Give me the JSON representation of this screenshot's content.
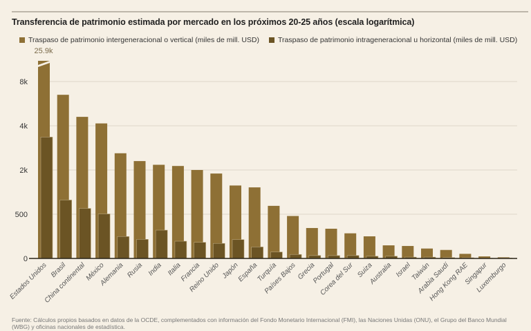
{
  "chart_data": {
    "type": "bar",
    "title": "Transferencia de patrimonio estimada por mercado en los próximos 20-25 años (escala logarítmica)",
    "xlabel": "",
    "ylabel": "",
    "yticks": [
      0,
      500,
      2000,
      4000,
      8000
    ],
    "ytick_labels": [
      "0",
      "500",
      "2k",
      "4k",
      "8k"
    ],
    "grid": true,
    "legend": "top-left",
    "categories": [
      "Estados Unidos",
      "Brasil",
      "China continental",
      "México",
      "Alemania",
      "Rusia",
      "India",
      "Italia",
      "Francia",
      "Reino Unido",
      "Japón",
      "España",
      "Turquía",
      "Países Bajos",
      "Grecia",
      "Portugal",
      "Corea del Sur",
      "Suiza",
      "Australia",
      "Israel",
      "Taiwán",
      "Arabia Saudí",
      "Hong Kong RAE",
      "Singapur",
      "Luxemburgo"
    ],
    "series": [
      {
        "name": "Traspaso de patrimonio intergeneracional o vertical (miles de mill. USD)",
        "color": "#8e7035",
        "values": [
          25900,
          6500,
          4600,
          4150,
          2600,
          2300,
          2170,
          2130,
          2000,
          1790,
          1230,
          1160,
          650,
          480,
          344,
          336,
          284,
          250,
          148,
          141,
          112,
          96,
          52,
          23,
          13
        ]
      },
      {
        "name": "Traspaso de patrimonio intrageneracional u horizontal (miles de mill. USD)",
        "color": "#6b5424",
        "values": [
          3350,
          780,
          600,
          505,
          248,
          216,
          320,
          195,
          182,
          170,
          213,
          130,
          73,
          45,
          34,
          33,
          34,
          26,
          26,
          15,
          15,
          10,
          8,
          3,
          5
        ]
      }
    ],
    "annotations": [
      {
        "category": "Estados Unidos",
        "text": "25.9k",
        "axis_break": true
      }
    ]
  },
  "source": "Fuente: Cálculos propios basados en datos de la OCDE, complementados con información del Fondo Monetario Internacional (FMI), las Naciones Unidas (ONU), el Grupo del Banco Mundial (WBG) y oficinas nacionales de estadística."
}
